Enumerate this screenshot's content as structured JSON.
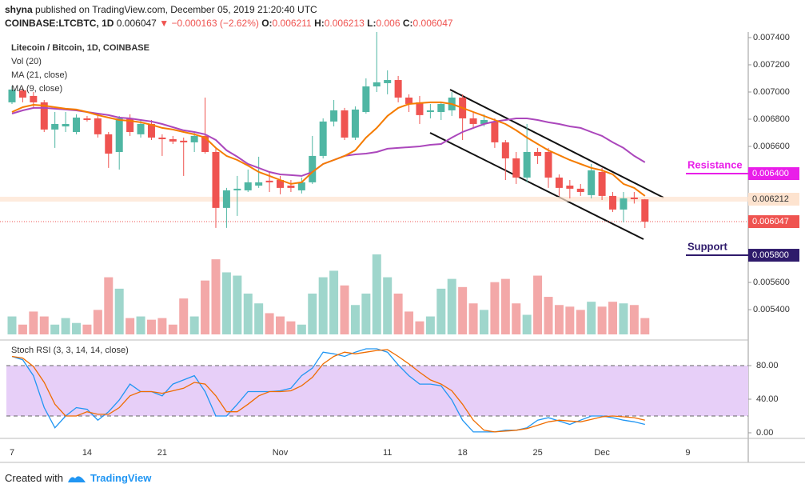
{
  "header": {
    "author": "shyna",
    "note": "published on TradingView.com, December 05, 2019 21:20:40 UTC",
    "symbol": "COINBASE:LTCBTC, 1D",
    "arrow": "▼",
    "change": "−0.000163 (−2.62%)",
    "o": "O:",
    "h": "H:",
    "l": "L:",
    "c": "C:"
  },
  "footer": {
    "text": "Created with",
    "brand": "TradingView"
  },
  "chart_data": [
    {
      "type": "candlestick",
      "title": "Litecoin / Bitcoin, 1D, COINBASE",
      "volume_label": "Vol (20)",
      "up_color": "#4fb6a3",
      "down_color": "#ef5350",
      "volume_up_color": "#9fd6cc",
      "volume_down_color": "#f3a8a8",
      "categories": [
        "7",
        null,
        null,
        null,
        null,
        null,
        null,
        "14",
        null,
        null,
        null,
        null,
        null,
        null,
        "21",
        null,
        null,
        null,
        null,
        null,
        null,
        null,
        null,
        null,
        null,
        "Nov",
        null,
        null,
        null,
        null,
        null,
        null,
        null,
        null,
        null,
        "11",
        null,
        null,
        null,
        null,
        null,
        null,
        "18",
        null,
        null,
        null,
        null,
        null,
        null,
        "25",
        null,
        null,
        null,
        null,
        null,
        "Dec",
        null,
        null,
        null,
        null,
        null,
        null,
        null,
        "9"
      ],
      "open": [
        0.006924,
        0.007012,
        0.006971,
        0.006924,
        0.006724,
        0.006747,
        0.006706,
        0.006806,
        0.006806,
        0.006689,
        0.006559,
        0.006806,
        0.006689,
        0.006765,
        0.006665,
        0.006653,
        0.006642,
        0.00663,
        0.006677,
        0.006559,
        0.006148,
        0.006277,
        0.006277,
        0.006312,
        0.006348,
        0.006353,
        0.006312,
        0.006277,
        0.006336,
        0.00653,
        0.006783,
        0.006865,
        0.006665,
        0.006853,
        0.007041,
        0.007065,
        0.007088,
        0.006959,
        0.006924,
        0.006853,
        0.006853,
        0.006865,
        0.006959,
        0.006806,
        0.006765,
        0.006783,
        0.00663,
        0.006512,
        0.006371,
        0.006559,
        0.006559,
        0.006371,
        0.006312,
        0.006289,
        0.006242,
        0.006412,
        0.006236,
        0.006136,
        0.006224,
        0.006211,
        null,
        null,
        null,
        null
      ],
      "high": [
        0.007041,
        0.00703,
        0.007,
        0.006941,
        0.006853,
        0.006853,
        0.006836,
        0.006824,
        0.006824,
        0.006706,
        0.006824,
        0.006836,
        0.006794,
        0.006794,
        0.006689,
        0.006677,
        0.006665,
        0.006706,
        0.006959,
        0.006589,
        0.006295,
        0.006383,
        0.00643,
        0.006524,
        0.006412,
        0.006383,
        0.006353,
        0.006371,
        0.006677,
        0.006806,
        0.006941,
        0.006883,
        0.006894,
        0.0071,
        0.007441,
        0.007159,
        0.007118,
        0.006983,
        0.006971,
        0.006912,
        0.006924,
        0.007,
        0.006983,
        0.006853,
        0.006836,
        0.006806,
        0.006647,
        0.006559,
        0.006765,
        0.006589,
        0.006589,
        0.006394,
        0.006353,
        0.006324,
        0.006471,
        0.006442,
        0.006265,
        0.006265,
        0.006265,
        0.006213,
        null,
        null,
        null,
        null
      ],
      "low": [
        0.006912,
        0.006924,
        0.006883,
        0.006706,
        0.006589,
        0.006706,
        0.006689,
        0.006783,
        0.006665,
        0.006442,
        0.00643,
        0.006677,
        0.006665,
        0.006647,
        0.00653,
        0.006618,
        0.006383,
        0.006559,
        0.006547,
        0.006001,
        0.006001,
        0.006089,
        0.006265,
        0.006295,
        0.006265,
        0.006248,
        0.006265,
        0.006254,
        0.006324,
        0.006512,
        0.006747,
        0.006647,
        0.006647,
        0.006841,
        0.007,
        0.006983,
        0.006924,
        0.006853,
        0.006765,
        0.006806,
        0.006794,
        0.006824,
        0.006647,
        0.006736,
        0.006747,
        0.006589,
        0.006353,
        0.006324,
        0.006336,
        0.006471,
        0.006295,
        0.006236,
        0.006218,
        0.006236,
        0.006218,
        0.006206,
        0.006118,
        0.006042,
        0.00618,
        0.006,
        null,
        null,
        null,
        null
      ],
      "close": [
        0.007018,
        0.006959,
        0.006924,
        0.006724,
        0.006765,
        0.006765,
        0.006812,
        0.006794,
        0.006689,
        0.006547,
        0.006806,
        0.006706,
        0.006765,
        0.006665,
        0.006653,
        0.006636,
        0.00663,
        0.006677,
        0.006559,
        0.006148,
        0.006277,
        0.006289,
        0.006336,
        0.006336,
        0.006336,
        0.006295,
        0.006295,
        0.006336,
        0.00653,
        0.006783,
        0.006865,
        0.006665,
        0.006871,
        0.007041,
        0.007071,
        0.007088,
        0.006959,
        0.006912,
        0.00683,
        0.006865,
        0.006912,
        0.006959,
        0.006806,
        0.006765,
        0.006794,
        0.00663,
        0.006512,
        0.006371,
        0.006559,
        0.00653,
        0.006371,
        0.006295,
        0.006289,
        0.006265,
        0.006424,
        0.006236,
        0.006136,
        0.006218,
        0.006212,
        0.006047,
        null,
        null,
        null,
        null
      ],
      "volume": [
        22,
        12,
        28,
        22,
        12,
        20,
        14,
        12,
        30,
        70,
        56,
        20,
        22,
        18,
        20,
        12,
        44,
        22,
        66,
        92,
        76,
        72,
        50,
        38,
        26,
        22,
        16,
        12,
        50,
        70,
        78,
        60,
        36,
        50,
        98,
        70,
        50,
        28,
        16,
        22,
        56,
        68,
        58,
        38,
        30,
        64,
        68,
        38,
        24,
        72,
        46,
        36,
        34,
        30,
        40,
        34,
        40,
        38,
        36,
        20,
        null,
        null,
        null,
        null
      ],
      "series": [
        {
          "name": "MA (21, close)",
          "color": "#ab47bc",
          "values": [
            0.006841,
            0.006865,
            0.006883,
            0.006883,
            0.006877,
            0.006871,
            0.006865,
            0.006853,
            0.006841,
            0.00683,
            0.006812,
            0.006806,
            0.006794,
            0.006783,
            0.006765,
            0.006741,
            0.006718,
            0.006706,
            0.006689,
            0.006647,
            0.006571,
            0.006524,
            0.006471,
            0.006442,
            0.006412,
            0.006394,
            0.006389,
            0.006383,
            0.006412,
            0.006471,
            0.0065,
            0.00653,
            0.006541,
            0.006547,
            0.006559,
            0.006583,
            0.006589,
            0.006594,
            0.0066,
            0.006612,
            0.006618,
            0.006665,
            0.006706,
            0.006736,
            0.006765,
            0.006783,
            0.006794,
            0.006806,
            0.006806,
            0.006794,
            0.006777,
            0.006765,
            0.006747,
            0.006736,
            0.006706,
            0.006677,
            0.00663,
            0.006589,
            0.00653,
            0.006483,
            null,
            null,
            null,
            null
          ]
        },
        {
          "name": "MA (9, close)",
          "color": "#f57c00",
          "values": [
            0.006853,
            0.006888,
            0.006906,
            0.0069,
            0.006888,
            0.006877,
            0.006871,
            0.006853,
            0.00683,
            0.006812,
            0.006794,
            0.006788,
            0.006777,
            0.006759,
            0.006736,
            0.006724,
            0.006706,
            0.006689,
            0.006665,
            0.006589,
            0.00653,
            0.0065,
            0.006459,
            0.006412,
            0.006383,
            0.006353,
            0.006324,
            0.006336,
            0.006412,
            0.006471,
            0.0065,
            0.00653,
            0.006571,
            0.006665,
            0.006736,
            0.006824,
            0.006883,
            0.006912,
            0.006918,
            0.006924,
            0.006924,
            0.006912,
            0.006883,
            0.006853,
            0.006824,
            0.006794,
            0.006765,
            0.006718,
            0.006665,
            0.006618,
            0.006571,
            0.006536,
            0.0065,
            0.006471,
            0.006442,
            0.006424,
            0.006394,
            0.006324,
            0.006295,
            0.006236,
            null,
            null,
            null,
            null
          ]
        }
      ],
      "ylim": [
        0.005177,
        0.007441
      ],
      "yticks": [
        {
          "value": 0.0074,
          "label": "0.007400"
        },
        {
          "value": 0.0072,
          "label": "0.007200"
        },
        {
          "value": 0.007,
          "label": "0.007000"
        },
        {
          "value": 0.0068,
          "label": "0.006800"
        },
        {
          "value": 0.0066,
          "label": "0.006600"
        },
        {
          "value": 0.0056,
          "label": "0.005600"
        },
        {
          "value": 0.0054,
          "label": "0.005400"
        }
      ],
      "annotations": [
        {
          "label": "Resistance",
          "value": 0.0064,
          "value_label": "0.006400",
          "color": "#e91ee9"
        },
        {
          "label": "Support",
          "value": 0.0058,
          "value_label": "0.005800",
          "color": "#2e1a6b"
        }
      ],
      "price_lines": [
        {
          "value": 0.006212,
          "color": "#fde3cf",
          "text_color": "#333"
        },
        {
          "value": 0.006047,
          "color": "#ef5350",
          "text_color": "#ffffff"
        }
      ],
      "grid": false
    },
    {
      "type": "line",
      "title": "Stoch RSI (3, 3, 14, 14, close)",
      "ylim": [
        -6.7,
        108.6
      ],
      "yticks": [
        {
          "value": 80,
          "label": "80.00"
        },
        {
          "value": 40,
          "label": "40.00"
        },
        {
          "value": 0,
          "label": "0.00"
        }
      ],
      "band": [
        20,
        80
      ],
      "band_color": "#e7cff8",
      "series": [
        {
          "color": "#2196f3",
          "values": [
            91,
            87,
            68,
            30,
            6,
            20,
            30,
            28,
            15,
            25,
            39,
            58,
            49,
            49,
            44,
            58,
            63,
            68,
            49,
            20,
            20,
            34,
            49,
            49,
            49,
            50,
            53,
            68,
            77,
            96,
            94,
            91,
            96,
            100,
            100,
            96,
            81,
            68,
            58,
            58,
            56,
            39,
            15,
            1,
            1,
            1,
            3,
            3,
            6,
            15,
            18,
            14,
            10,
            15,
            20,
            20,
            18,
            15,
            13,
            10,
            null,
            null,
            null,
            null
          ]
        },
        {
          "color": "#ef6c00",
          "values": [
            91,
            89,
            79,
            60,
            34,
            20,
            20,
            25,
            22,
            22,
            30,
            44,
            49,
            49,
            47,
            50,
            53,
            60,
            58,
            44,
            25,
            25,
            34,
            44,
            49,
            49,
            50,
            56,
            66,
            82,
            91,
            96,
            94,
            96,
            98,
            99,
            91,
            82,
            72,
            63,
            58,
            50,
            34,
            15,
            3,
            1,
            2,
            3,
            5,
            9,
            13,
            15,
            14,
            13,
            16,
            19,
            20,
            19,
            18,
            15,
            null,
            null,
            null,
            null
          ]
        }
      ]
    }
  ]
}
